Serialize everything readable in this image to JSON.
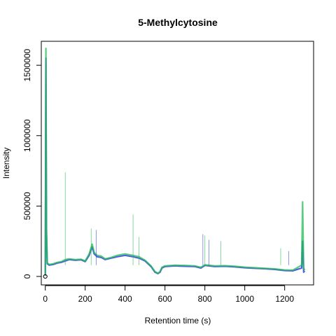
{
  "chart_data": {
    "type": "line",
    "title": "5-Methylcytosine",
    "xlabel": "Retention time (s)",
    "ylabel": "Intensity",
    "xlim": [
      -20,
      1345
    ],
    "ylim": [
      -60000,
      1670000
    ],
    "x_ticks": [
      0,
      200,
      400,
      600,
      800,
      1000,
      1200
    ],
    "y_ticks": [
      0,
      500000,
      1000000,
      1500000
    ],
    "x_tick_labels": [
      "0",
      "200",
      "400",
      "600",
      "800",
      "1000",
      "1200"
    ],
    "y_tick_labels": [
      "0",
      "500000",
      "1000000",
      "1500000"
    ],
    "grid": false,
    "legend": "none",
    "series": [
      {
        "color": "#3344dd",
        "x": [
          0,
          3,
          6,
          10,
          20,
          40,
          60,
          80,
          100,
          120,
          150,
          180,
          200,
          220,
          235,
          245,
          260,
          280,
          300,
          330,
          360,
          400,
          440,
          470,
          500,
          530,
          550,
          565,
          575,
          585,
          600,
          650,
          700,
          750,
          780,
          800,
          850,
          900,
          950,
          1000,
          1050,
          1100,
          1150,
          1200,
          1240,
          1285,
          1290,
          1295,
          1300
        ],
        "y": [
          5000,
          1550000,
          300000,
          90000,
          80000,
          85000,
          95000,
          100000,
          110000,
          120000,
          115000,
          118000,
          105000,
          150000,
          210000,
          160000,
          140000,
          135000,
          120000,
          130000,
          140000,
          150000,
          140000,
          130000,
          110000,
          70000,
          30000,
          20000,
          30000,
          60000,
          70000,
          75000,
          72000,
          70000,
          60000,
          78000,
          70000,
          72000,
          68000,
          62000,
          58000,
          55000,
          50000,
          42000,
          40000,
          60000,
          250000,
          30000,
          40000
        ]
      },
      {
        "color": "#22bb55",
        "x": [
          0,
          3,
          6,
          10,
          20,
          40,
          60,
          80,
          100,
          120,
          150,
          180,
          200,
          220,
          235,
          245,
          260,
          280,
          300,
          330,
          360,
          400,
          440,
          470,
          500,
          530,
          550,
          565,
          575,
          585,
          600,
          650,
          700,
          750,
          780,
          800,
          850,
          900,
          950,
          1000,
          1050,
          1100,
          1150,
          1200,
          1240,
          1285,
          1290,
          1295,
          1300
        ],
        "y": [
          8000,
          1620000,
          350000,
          95000,
          85000,
          90000,
          100000,
          105000,
          120000,
          125000,
          120000,
          122000,
          110000,
          160000,
          230000,
          170000,
          150000,
          145000,
          125000,
          135000,
          150000,
          160000,
          150000,
          140000,
          115000,
          75000,
          35000,
          22000,
          35000,
          65000,
          75000,
          80000,
          78000,
          75000,
          65000,
          82000,
          75000,
          76000,
          72000,
          66000,
          62000,
          58000,
          54000,
          46000,
          44000,
          80000,
          530000,
          60000,
          45000
        ]
      }
    ],
    "spikes": [
      {
        "x": 100,
        "y": 740000,
        "color": "#22bb55"
      },
      {
        "x": 230,
        "y": 340000,
        "color": "#22bb55"
      },
      {
        "x": 255,
        "y": 330000,
        "color": "#3344dd"
      },
      {
        "x": 440,
        "y": 440000,
        "color": "#22bb55"
      },
      {
        "x": 470,
        "y": 280000,
        "color": "#22bb55"
      },
      {
        "x": 790,
        "y": 300000,
        "color": "#3344dd"
      },
      {
        "x": 800,
        "y": 290000,
        "color": "#22bb55"
      },
      {
        "x": 820,
        "y": 260000,
        "color": "#3344dd"
      },
      {
        "x": 880,
        "y": 250000,
        "color": "#22bb55"
      },
      {
        "x": 1180,
        "y": 200000,
        "color": "#22bb55"
      },
      {
        "x": 1220,
        "y": 180000,
        "color": "#3344dd"
      }
    ],
    "marker": {
      "x": 0,
      "y": 0
    }
  }
}
